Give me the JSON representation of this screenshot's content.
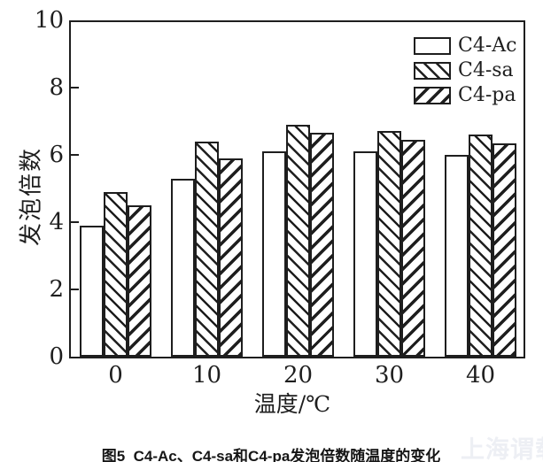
{
  "figure": {
    "caption": "图5  C4-Ac、C4-sa和C4-pa发泡倍数随温度的变化",
    "watermark": "上海谓载"
  },
  "chart_data": {
    "type": "bar",
    "title": "",
    "categories": [
      "0",
      "10",
      "20",
      "30",
      "40"
    ],
    "series": [
      {
        "name": "C4-Ac",
        "hatch": "none",
        "values": [
          3.9,
          5.3,
          6.1,
          6.1,
          6.0
        ]
      },
      {
        "name": "C4-sa",
        "hatch": "backslash",
        "values": [
          4.9,
          6.4,
          6.9,
          6.7,
          6.6
        ]
      },
      {
        "name": "C4-pa",
        "hatch": "slash",
        "values": [
          4.5,
          5.9,
          6.65,
          6.45,
          6.35
        ]
      }
    ],
    "xlabel": "温度/℃",
    "ylabel": "发泡倍数",
    "ylim": [
      0,
      10
    ],
    "yticks": [
      0,
      2,
      4,
      6,
      8,
      10
    ],
    "legend_position": "top-right",
    "grid": false,
    "colors": {
      "ink": "#1e1e1e",
      "background": "#ffffff",
      "watermark_color": "#edeff4"
    }
  }
}
